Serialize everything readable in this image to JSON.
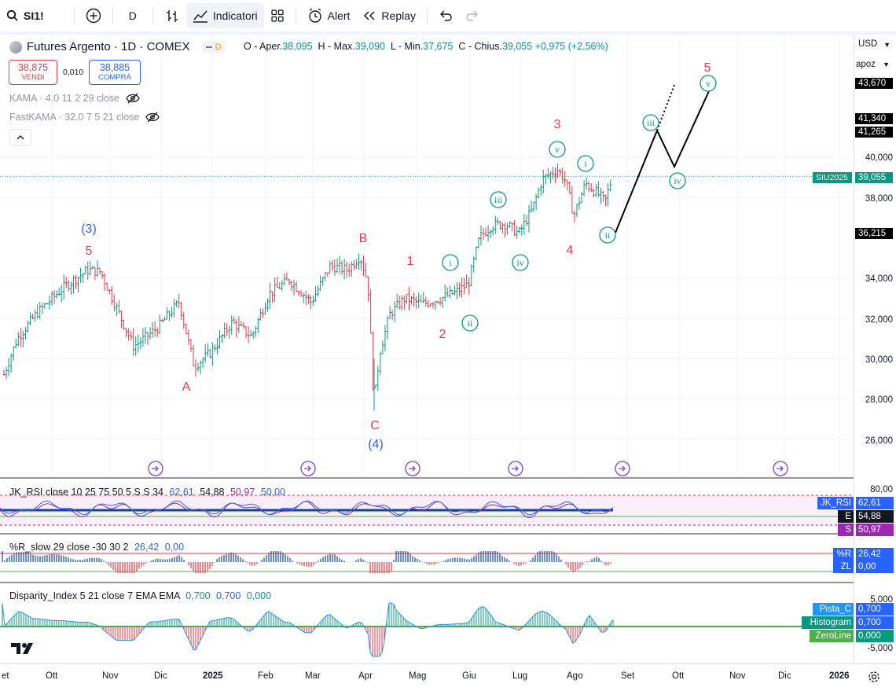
{
  "toolbar": {
    "symbol": "SI1!",
    "interval": "D",
    "indicators_label": "Indicatori",
    "alert_label": "Alert",
    "replay_label": "Replay"
  },
  "legend": {
    "title": "Futures Argento · 1D · COMEX",
    "badge": "D",
    "open_label": "O - Aper.",
    "open": "38,095",
    "high_label": "H - Max.",
    "high": "39,090",
    "low_label": "L - Min.",
    "low": "37,675",
    "close_label": "C - Chius.",
    "close": "39,055",
    "change": "+0,975 (+2,56%)",
    "sell_price": "38,875",
    "sell_label": "VENDI",
    "spread": "0,010",
    "buy_price": "38,885",
    "buy_label": "COMPRA",
    "kama": "KAMA · 4.0 11 2 29 close",
    "fastkama": "FastKAMA · 32.0 7 5 21 close"
  },
  "price_axis": {
    "currency": "USD",
    "fit": "apoz",
    "ticks": [
      "40,000",
      "38,000",
      "34,000",
      "32,000",
      "30,000",
      "28,000",
      "26,000"
    ],
    "tag_43670": "43,670",
    "tag_41340": "41,340",
    "tag_41265": "41,265",
    "tag_symbol": "SIU2025",
    "tag_last": "39,055",
    "tag_36215": "36,215"
  },
  "rsi_pane": {
    "label": "JK_RSI close 10 25 75 50 5 S S 34",
    "v1": "62,61",
    "v2": "54,88",
    "v3": "50,97",
    "v4": "50,00",
    "axis_top": "80,00",
    "tags": [
      {
        "name": "JK_RSI",
        "value": "62,61"
      },
      {
        "name": "E",
        "value": "54,88"
      },
      {
        "name": "S",
        "value": "50,97"
      }
    ]
  },
  "wr_pane": {
    "label": "%R_slow 29 close -30 30 2",
    "v1": "26,42",
    "v2": "0,00",
    "tags": [
      {
        "name": "%R",
        "value": "26,42"
      },
      {
        "name": "ZL",
        "value": "0,00"
      }
    ]
  },
  "disp_pane": {
    "label": "Disparity_Index 5 21 close 7 EMA EMA",
    "v1": "0,700",
    "v2": "0,700",
    "v3": "0,000",
    "axis_top": "5,000",
    "axis_bottom": "-5,000",
    "tags": [
      {
        "name": "Pista_C",
        "value": "0,700"
      },
      {
        "name": "Histogram",
        "value": "0,700"
      },
      {
        "name": "ZeroLine",
        "value": "0,000"
      }
    ]
  },
  "time_axis": [
    "et",
    "Ott",
    "Nov",
    "Dic",
    "2025",
    "Feb",
    "Mar",
    "Apr",
    "Mag",
    "Giu",
    "Lug",
    "Ago",
    "Set",
    "Ott",
    "Nov",
    "Dic",
    "2026"
  ],
  "wave_labels": {
    "w3_blue": "(3)",
    "w5_red_a": "5",
    "A": "A",
    "B": "B",
    "C": "C",
    "w4_blue": "(4)",
    "w1": "1",
    "w2": "2",
    "w3": "3",
    "w4": "4",
    "w5": "5",
    "i": "i",
    "ii": "ii",
    "iii": "iii",
    "iv": "iv",
    "v": "v"
  },
  "colors": {
    "up": "#089981",
    "down": "#f23645",
    "blue_wave": "#2962ff",
    "green_wave": "#089981",
    "red_wave": "#f23645",
    "purple_marker": "#7b3fe4"
  }
}
